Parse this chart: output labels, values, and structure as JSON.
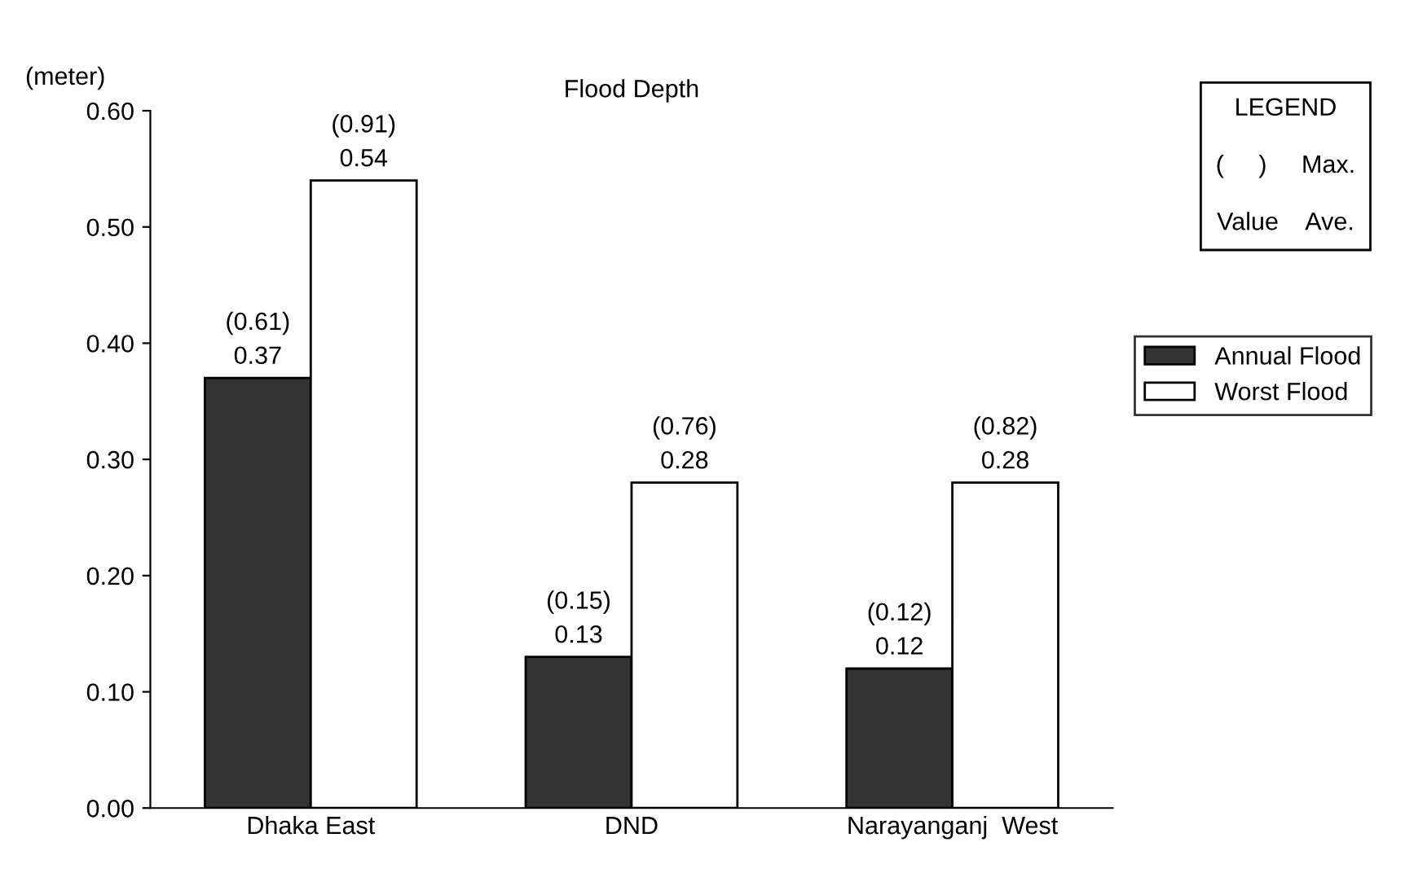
{
  "chart_data": {
    "type": "bar",
    "title": "Flood Depth",
    "ylabel": "(meter)",
    "categories": [
      "Dhaka East",
      "DND",
      "Narayanganj  West"
    ],
    "series": [
      {
        "name": "Annual Flood",
        "color": "#333333",
        "values": [
          0.37,
          0.13,
          0.12
        ],
        "value_labels": [
          "(0.61)\n0.37",
          "(0.15)\n0.13",
          "(0.12)\n0.12"
        ]
      },
      {
        "name": "Worst Flood",
        "color": "#ffffff",
        "values": [
          0.54,
          0.28,
          0.28
        ],
        "value_labels": [
          "(0.91)\n0.54",
          "(0.76)\n0.28",
          "(0.82)\n0.28"
        ]
      }
    ],
    "ylim": [
      0,
      0.6
    ],
    "yticks": [
      {
        "value": 0,
        "label": "0.00"
      },
      {
        "value": 0.1,
        "label": "0.10"
      },
      {
        "value": 0.2,
        "label": "0.20"
      },
      {
        "value": 0.3,
        "label": "0.30"
      },
      {
        "value": 0.4,
        "label": "0.40"
      },
      {
        "value": 0.5,
        "label": "0.50"
      },
      {
        "value": 0.6,
        "label": "0.60"
      }
    ],
    "grid": false,
    "legend": "right",
    "annotations": [
      "LEGEND",
      "(     )     Max.",
      "Value    Ave."
    ]
  }
}
